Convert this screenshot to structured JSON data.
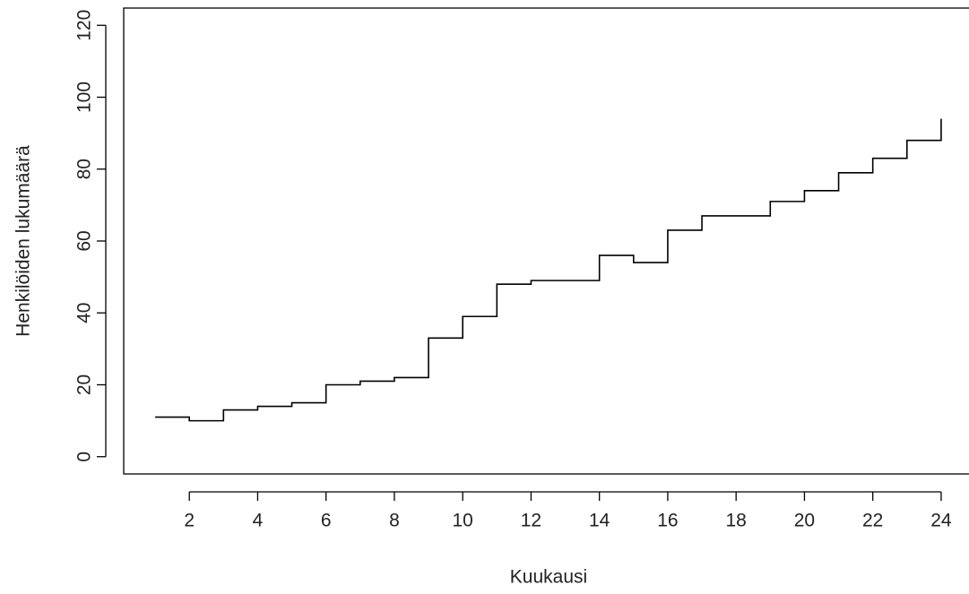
{
  "chart_data": {
    "type": "step",
    "x_label": "Kuukausi",
    "y_label": "Henkilöiden lukumäärä",
    "x": [
      1,
      2,
      3,
      4,
      5,
      6,
      7,
      8,
      9,
      10,
      11,
      12,
      13,
      14,
      15,
      16,
      17,
      18,
      19,
      20,
      21,
      22,
      23,
      24
    ],
    "series": [
      {
        "color": "#000000",
        "values": [
          11,
          10,
          13,
          14,
          15,
          20,
          21,
          22,
          33,
          39,
          48,
          49,
          49,
          56,
          54,
          63,
          67,
          67,
          71,
          74,
          79,
          83,
          88,
          94
        ]
      }
    ],
    "xlim": [
      0.08,
      24.92
    ],
    "xticks": [
      2,
      4,
      6,
      8,
      10,
      12,
      14,
      16,
      18,
      20,
      22,
      24
    ],
    "ylim": [
      -4.8,
      124.8
    ],
    "yticks": [
      0,
      20,
      40,
      60,
      80,
      100,
      120
    ]
  }
}
